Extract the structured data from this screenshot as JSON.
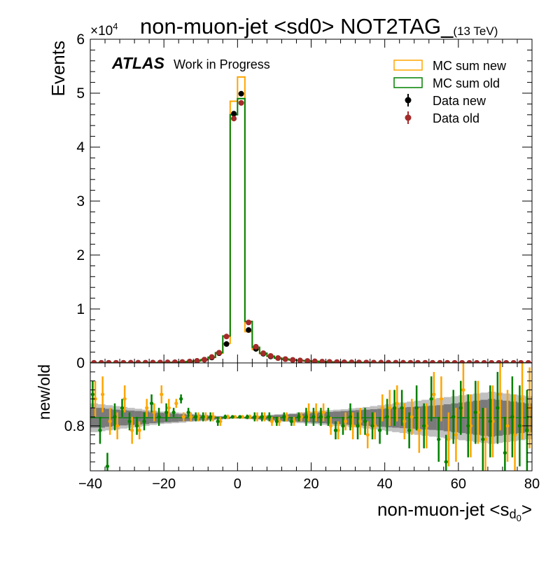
{
  "title": {
    "main": "non-muon-jet <sd0> NOT2TAG_",
    "energy": "(13 TeV)"
  },
  "atlas": {
    "label": "ATLAS",
    "sublabel": "Work in Progress"
  },
  "multiplier": {
    "base": "×10",
    "exp": "4"
  },
  "xlabel": {
    "main": "non-muon-jet <s",
    "sub": "d",
    "subsub": "0",
    "close": ">"
  },
  "colors": {
    "mc_new": "#ffa500",
    "mc_old": "#008000",
    "data_new": "#000000",
    "data_old": "#a52a2a",
    "band_dark": "#7a7a7a",
    "band_light": "#c0c0c0"
  },
  "chart_data": [
    {
      "type": "line",
      "panel": "main",
      "ylabel": "Events",
      "xlim": [
        -40,
        80
      ],
      "ylim": [
        0,
        60000
      ],
      "yticks": [
        0,
        10000,
        20000,
        30000,
        40000,
        50000,
        60000
      ],
      "ytick_labels": [
        "0",
        "1",
        "2",
        "3",
        "4",
        "5",
        "6"
      ],
      "bin_edges": [
        -40,
        -38,
        -36,
        -34,
        -32,
        -30,
        -28,
        -26,
        -24,
        -22,
        -20,
        -18,
        -16,
        -14,
        -12,
        -10,
        -8,
        -6,
        -4,
        -2,
        0,
        2,
        4,
        6,
        8,
        10,
        12,
        14,
        16,
        18,
        20,
        22,
        24,
        26,
        28,
        30,
        32,
        34,
        36,
        38,
        40,
        42,
        44,
        46,
        48,
        50,
        52,
        54,
        56,
        58,
        60,
        62,
        64,
        66,
        68,
        70,
        72,
        74,
        76,
        78,
        80
      ],
      "legend": [
        "MC sum new",
        "MC sum old",
        "Data new",
        "Data old"
      ],
      "legend_position": "top-right",
      "series": [
        {
          "name": "MC sum new",
          "style": "step",
          "values": [
            10,
            10,
            15,
            15,
            20,
            25,
            30,
            40,
            50,
            70,
            90,
            120,
            170,
            250,
            380,
            600,
            1000,
            1800,
            3600,
            48500,
            53000,
            5800,
            2500,
            1700,
            1200,
            900,
            700,
            550,
            450,
            360,
            290,
            230,
            180,
            150,
            120,
            100,
            80,
            65,
            55,
            45,
            38,
            32,
            26,
            22,
            18,
            15,
            12,
            10,
            9,
            8,
            7,
            6,
            5,
            4,
            4,
            3,
            3,
            2,
            2,
            2
          ]
        },
        {
          "name": "MC sum old",
          "style": "step",
          "values": [
            10,
            10,
            14,
            15,
            19,
            24,
            29,
            39,
            48,
            68,
            88,
            118,
            165,
            245,
            370,
            600,
            1050,
            1900,
            5000,
            46000,
            49000,
            7700,
            2900,
            1800,
            1250,
            900,
            700,
            550,
            450,
            360,
            290,
            230,
            180,
            150,
            120,
            100,
            80,
            65,
            55,
            45,
            38,
            32,
            26,
            22,
            18,
            15,
            12,
            10,
            9,
            8,
            7,
            6,
            5,
            4,
            4,
            3,
            3,
            2,
            2,
            2
          ]
        },
        {
          "name": "Data new",
          "style": "points",
          "values": [
            10,
            10,
            15,
            15,
            20,
            25,
            30,
            40,
            50,
            70,
            90,
            120,
            170,
            250,
            380,
            600,
            1000,
            1800,
            3500,
            46200,
            49900,
            6100,
            2600,
            1700,
            1200,
            900,
            700,
            550,
            450,
            360,
            290,
            230,
            180,
            150,
            120,
            100,
            80,
            65,
            55,
            45,
            38,
            32,
            26,
            22,
            18,
            15,
            12,
            10,
            9,
            8,
            7,
            6,
            5,
            4,
            4,
            3,
            3,
            2,
            2,
            2
          ]
        },
        {
          "name": "Data old",
          "style": "points",
          "values": [
            10,
            10,
            15,
            15,
            20,
            25,
            30,
            40,
            50,
            70,
            90,
            120,
            170,
            250,
            380,
            600,
            1100,
            1900,
            4900,
            45300,
            48200,
            7500,
            3000,
            1800,
            1300,
            900,
            700,
            550,
            450,
            360,
            290,
            230,
            180,
            150,
            120,
            100,
            80,
            65,
            55,
            45,
            38,
            32,
            26,
            22,
            18,
            15,
            12,
            10,
            9,
            8,
            7,
            6,
            5,
            4,
            4,
            3,
            3,
            2,
            2,
            2
          ]
        }
      ]
    },
    {
      "type": "scatter",
      "panel": "ratio",
      "ylabel": "new/old",
      "xlim": [
        -40,
        80
      ],
      "ylim": [
        0.7,
        0.94
      ],
      "yticks": [
        0.8
      ],
      "ytick_labels": [
        "0.8"
      ],
      "xticks": [
        -40,
        -20,
        0,
        20,
        40,
        60,
        80
      ],
      "xtick_labels": [
        "−40",
        "−20",
        "0",
        "20",
        "40",
        "60",
        "80"
      ],
      "reference_line": 0.818,
      "x": [
        -39,
        -37,
        -35,
        -33,
        -31,
        -29,
        -27,
        -25,
        -23,
        -21,
        -19,
        -17,
        -15,
        -13,
        -11,
        -9,
        -7,
        -5,
        -3,
        -1,
        1,
        3,
        5,
        7,
        9,
        11,
        13,
        15,
        17,
        19,
        21,
        23,
        25,
        27,
        29,
        31,
        33,
        35,
        37,
        39,
        41,
        43,
        45,
        47,
        49,
        51,
        53,
        55,
        57,
        59,
        61,
        63,
        65,
        67,
        69,
        71,
        73,
        75,
        77,
        79
      ],
      "band_dark_halfwidth": [
        0.022,
        0.022,
        0.02,
        0.018,
        0.017,
        0.016,
        0.015,
        0.014,
        0.012,
        0.011,
        0.01,
        0.009,
        0.008,
        0.007,
        0.006,
        0.005,
        0.004,
        0.003,
        0.002,
        0.001,
        0.001,
        0.002,
        0.003,
        0.004,
        0.005,
        0.006,
        0.007,
        0.008,
        0.009,
        0.01,
        0.011,
        0.012,
        0.013,
        0.014,
        0.015,
        0.016,
        0.017,
        0.018,
        0.019,
        0.02,
        0.021,
        0.022,
        0.023,
        0.024,
        0.025,
        0.026,
        0.027,
        0.028,
        0.03,
        0.032,
        0.034,
        0.036,
        0.038,
        0.04,
        0.042,
        0.04,
        0.038,
        0.036,
        0.034,
        0.032
      ],
      "band_light_halfwidth": [
        0.032,
        0.03,
        0.028,
        0.026,
        0.024,
        0.022,
        0.02,
        0.018,
        0.016,
        0.014,
        0.013,
        0.012,
        0.011,
        0.009,
        0.008,
        0.007,
        0.005,
        0.004,
        0.003,
        0.002,
        0.002,
        0.003,
        0.004,
        0.005,
        0.007,
        0.008,
        0.009,
        0.01,
        0.012,
        0.013,
        0.014,
        0.016,
        0.017,
        0.018,
        0.019,
        0.021,
        0.022,
        0.024,
        0.026,
        0.028,
        0.03,
        0.032,
        0.034,
        0.036,
        0.038,
        0.04,
        0.042,
        0.044,
        0.046,
        0.048,
        0.05,
        0.052,
        0.054,
        0.056,
        0.058,
        0.056,
        0.054,
        0.052,
        0.05,
        0.048
      ],
      "series": [
        {
          "name": "MC sum new",
          "y": [
            0.86,
            0.87,
            0.81,
            0.8,
            0.86,
            0.79,
            0.79,
            0.84,
            0.83,
            0.87,
            0.84,
            0.85,
            0.82,
            0.82,
            0.82,
            0.82,
            0.82,
            0.81,
            0.82,
            0.82,
            0.82,
            0.82,
            0.82,
            0.82,
            0.81,
            0.81,
            0.82,
            0.81,
            0.82,
            0.83,
            0.83,
            0.83,
            0.8,
            0.79,
            0.81,
            0.8,
            0.81,
            0.78,
            0.8,
            0.84,
            0.84,
            0.85,
            0.81,
            0.82,
            0.79,
            0.8,
            0.87,
            0.86,
            0.77,
            0.78,
            0.88,
            0.8,
            0.83,
            0.77,
            0.81,
            0.87,
            0.8,
            0.78,
            0.86,
            0.84
          ],
          "err": [
            0.04,
            0.04,
            0.03,
            0.03,
            0.03,
            0.03,
            0.02,
            0.02,
            0.02,
            0.02,
            0.02,
            0.01,
            0.01,
            0.01,
            0.01,
            0.01,
            0.01,
            0.01,
            0.005,
            0.003,
            0.003,
            0.005,
            0.01,
            0.01,
            0.01,
            0.01,
            0.01,
            0.01,
            0.01,
            0.02,
            0.02,
            0.02,
            0.02,
            0.02,
            0.02,
            0.03,
            0.03,
            0.03,
            0.03,
            0.03,
            0.04,
            0.04,
            0.04,
            0.04,
            0.05,
            0.05,
            0.05,
            0.05,
            0.06,
            0.06,
            0.06,
            0.07,
            0.07,
            0.07,
            0.08,
            0.08,
            0.08,
            0.09,
            0.09,
            0.09
          ]
        },
        {
          "name": "MC sum old",
          "y": [
            0.87,
            0.79,
            0.71,
            0.82,
            0.84,
            0.81,
            0.8,
            0.81,
            0.85,
            0.82,
            0.83,
            0.83,
            0.86,
            0.83,
            0.82,
            0.82,
            0.82,
            0.81,
            0.82,
            0.82,
            0.82,
            0.82,
            0.82,
            0.82,
            0.82,
            0.81,
            0.82,
            0.81,
            0.82,
            0.82,
            0.82,
            0.82,
            0.82,
            0.79,
            0.8,
            0.82,
            0.8,
            0.81,
            0.8,
            0.79,
            0.82,
            0.84,
            0.84,
            0.79,
            0.84,
            0.8,
            0.86,
            0.77,
            0.72,
            0.82,
            0.84,
            0.8,
            0.83,
            0.77,
            0.81,
            0.84,
            0.74,
            0.82,
            0.8,
            0.79
          ],
          "err": [
            0.03,
            0.03,
            0.03,
            0.03,
            0.02,
            0.02,
            0.02,
            0.02,
            0.02,
            0.02,
            0.02,
            0.01,
            0.01,
            0.01,
            0.01,
            0.01,
            0.01,
            0.01,
            0.005,
            0.003,
            0.003,
            0.005,
            0.01,
            0.01,
            0.01,
            0.01,
            0.01,
            0.01,
            0.01,
            0.02,
            0.02,
            0.02,
            0.02,
            0.02,
            0.02,
            0.03,
            0.03,
            0.03,
            0.03,
            0.03,
            0.04,
            0.04,
            0.04,
            0.04,
            0.05,
            0.05,
            0.05,
            0.05,
            0.06,
            0.06,
            0.06,
            0.07,
            0.07,
            0.07,
            0.08,
            0.08,
            0.08,
            0.09,
            0.09,
            0.09
          ]
        }
      ]
    }
  ]
}
